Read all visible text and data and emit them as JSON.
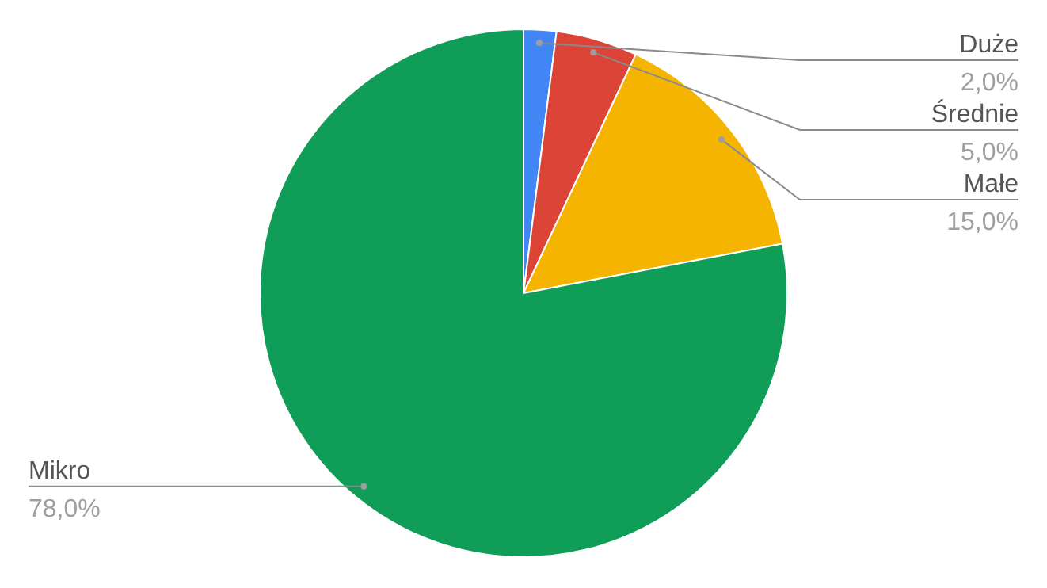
{
  "chart_data": {
    "type": "pie",
    "categories": [
      "Duże",
      "Średnie",
      "Małe",
      "Mikro"
    ],
    "values": [
      2,
      5,
      15,
      78
    ],
    "colors": [
      "#4285f4",
      "#db4437",
      "#f4b400",
      "#0f9d58"
    ],
    "value_labels": [
      "2,0%",
      "5,0%",
      "15,0%",
      "78,0%"
    ],
    "legend": false
  }
}
